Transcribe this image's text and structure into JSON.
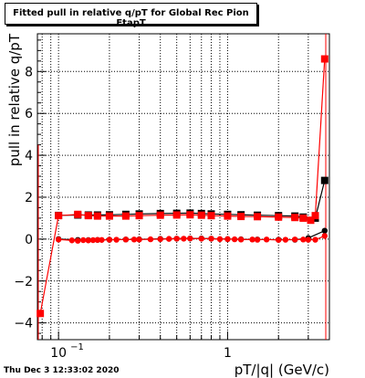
{
  "title": "Fitted pull in relative q/pT for Global Rec Pion EtapT",
  "timestamp": "Thu Dec  3 12:33:02 2020",
  "chart_data": {
    "type": "scatter",
    "xlabel": "pT/|q| (GeV/c)",
    "ylabel": "pull in relative q/pT",
    "xscale": "log",
    "xlim": [
      0.075,
      4.0
    ],
    "ylim": [
      -4.8,
      9.8
    ],
    "yticks": [
      -4,
      -2,
      0,
      2,
      4,
      6,
      8
    ],
    "ytick_labels": [
      "−4",
      "−2",
      "0",
      "2",
      "4",
      "6",
      "8"
    ],
    "xtick_major": [
      0.1,
      1
    ],
    "xtick_labels": [
      "10",
      "1"
    ],
    "xtick_label_exponent": "−1",
    "grid": true,
    "series": [
      {
        "color": "#000000",
        "marker": "square",
        "x": [
          0.1,
          0.13,
          0.15,
          0.17,
          0.2,
          0.25,
          0.3,
          0.4,
          0.5,
          0.6,
          0.7,
          0.8,
          1.0,
          1.2,
          1.5,
          2.0,
          2.5,
          2.8,
          3.3,
          3.75
        ],
        "y": [
          1.13,
          1.15,
          1.15,
          1.15,
          1.16,
          1.18,
          1.2,
          1.22,
          1.23,
          1.24,
          1.22,
          1.2,
          1.18,
          1.16,
          1.14,
          1.12,
          1.1,
          1.05,
          1.0,
          2.8
        ]
      },
      {
        "color": "#ff0000",
        "marker": "square",
        "x": [
          0.078,
          0.1,
          0.13,
          0.15,
          0.17,
          0.2,
          0.25,
          0.3,
          0.4,
          0.5,
          0.6,
          0.7,
          0.8,
          1.0,
          1.2,
          1.5,
          2.0,
          2.5,
          2.8,
          3.1,
          3.3,
          3.75
        ],
        "y": [
          -3.55,
          1.12,
          1.18,
          1.12,
          1.1,
          1.1,
          1.1,
          1.12,
          1.14,
          1.15,
          1.16,
          1.14,
          1.12,
          1.1,
          1.08,
          1.07,
          1.05,
          1.03,
          1.0,
          0.9,
          1.12,
          8.6
        ]
      },
      {
        "color": "#000000",
        "marker": "circle",
        "x": [
          0.1,
          0.13,
          0.15,
          0.17,
          0.2,
          0.25,
          0.3,
          0.4,
          0.5,
          0.6,
          0.7,
          0.8,
          1.0,
          1.2,
          1.5,
          2.0,
          2.5,
          3.0,
          3.75
        ],
        "y": [
          0.0,
          -0.04,
          -0.05,
          -0.04,
          -0.03,
          -0.02,
          -0.01,
          0.01,
          0.02,
          0.03,
          0.03,
          0.02,
          0.0,
          -0.01,
          -0.02,
          -0.03,
          -0.03,
          0.05,
          0.4
        ]
      },
      {
        "color": "#ff0000",
        "marker": "circle",
        "x": [
          0.1,
          0.12,
          0.13,
          0.14,
          0.15,
          0.16,
          0.17,
          0.18,
          0.2,
          0.22,
          0.25,
          0.28,
          0.3,
          0.35,
          0.4,
          0.45,
          0.5,
          0.55,
          0.6,
          0.7,
          0.8,
          0.9,
          1.0,
          1.1,
          1.2,
          1.4,
          1.5,
          1.7,
          2.0,
          2.2,
          2.5,
          2.8,
          3.0,
          3.3,
          3.75
        ],
        "y": [
          -0.02,
          -0.06,
          -0.08,
          -0.05,
          -0.06,
          -0.05,
          -0.04,
          -0.04,
          -0.03,
          -0.03,
          -0.02,
          -0.02,
          -0.02,
          -0.01,
          0.0,
          0.01,
          0.02,
          0.02,
          0.03,
          0.02,
          0.02,
          0.0,
          0.0,
          -0.01,
          -0.02,
          -0.02,
          -0.03,
          -0.02,
          -0.04,
          -0.03,
          -0.02,
          -0.02,
          -0.03,
          -0.03,
          0.15
        ]
      }
    ]
  }
}
